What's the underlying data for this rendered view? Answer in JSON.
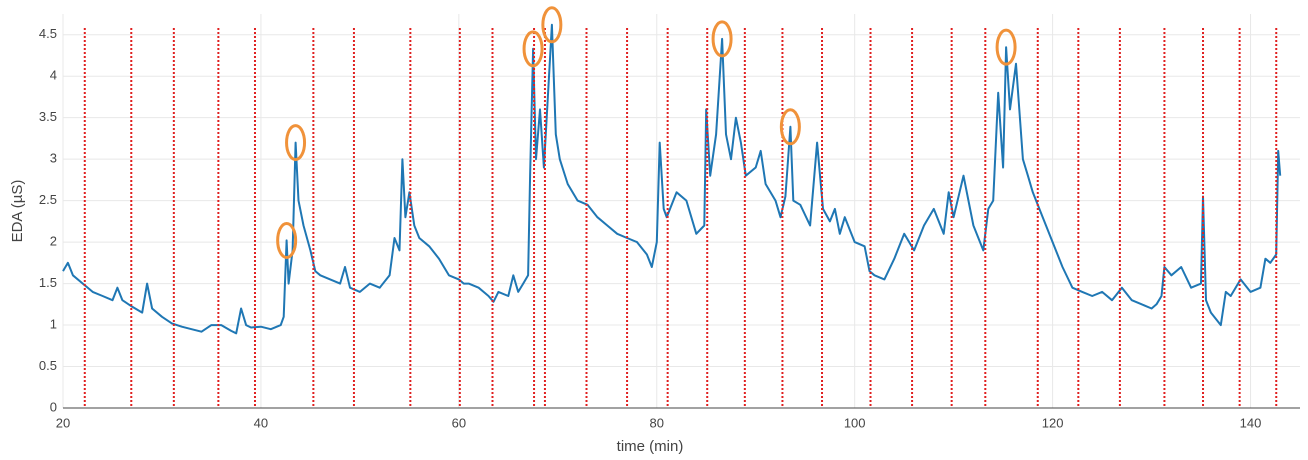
{
  "chart_data": {
    "type": "line",
    "xlabel": "time (min)",
    "ylabel": "EDA (µS)",
    "xlim": [
      20,
      145
    ],
    "ylim": [
      0,
      4.75
    ],
    "xticks": [
      20,
      40,
      60,
      80,
      100,
      120,
      140
    ],
    "yticks": [
      0,
      0.5,
      1,
      1.5,
      2,
      2.5,
      3,
      3.5,
      4,
      4.5
    ],
    "grid": true,
    "color": "#1f77b4",
    "x": [
      20,
      20.5,
      21,
      22,
      23,
      24,
      25,
      25.5,
      26,
      27,
      28,
      28.5,
      29,
      30,
      31,
      32,
      33,
      34,
      35,
      36,
      37,
      37.5,
      38,
      38.5,
      39,
      40,
      41,
      42,
      42.3,
      42.6,
      42.8,
      43.2,
      43.5,
      43.8,
      44.3,
      45,
      45.5,
      46,
      47,
      48,
      48.5,
      49,
      50,
      51,
      52,
      53,
      53.5,
      54,
      54.3,
      54.6,
      55,
      55.5,
      56,
      57,
      58,
      59,
      60,
      60.5,
      61,
      62,
      62.5,
      63,
      63.5,
      64,
      65,
      65.5,
      66,
      66.5,
      67,
      67.2,
      67.5,
      67.8,
      68.2,
      68.6,
      69.4,
      69.8,
      70.2,
      71,
      72,
      73,
      74,
      75,
      76,
      77,
      78,
      79,
      79.5,
      80,
      80.3,
      80.7,
      81,
      82,
      83,
      84,
      84.8,
      85,
      85.4,
      86,
      86.6,
      87,
      87.5,
      88,
      88.5,
      89,
      90,
      90.5,
      91,
      92,
      92.5,
      93,
      93.5,
      93.8,
      94.5,
      95.5,
      96.2,
      96.8,
      97.5,
      98,
      98.5,
      99,
      100,
      101,
      101.5,
      102,
      103,
      104,
      105,
      106,
      107,
      108,
      109,
      109.5,
      110,
      111,
      112,
      113,
      113.5,
      114,
      114.5,
      115,
      115.3,
      115.7,
      116.3,
      117,
      117.5,
      118,
      119,
      120,
      121,
      122,
      123,
      124,
      125,
      126,
      127,
      128,
      129,
      130,
      130.5,
      131,
      131.3,
      132,
      133,
      134,
      135,
      135.2,
      135.5,
      136,
      137,
      137.5,
      138,
      139,
      140,
      141,
      141.5,
      142,
      142.6,
      142.8,
      143
    ],
    "values": [
      1.65,
      1.75,
      1.6,
      1.5,
      1.4,
      1.35,
      1.3,
      1.45,
      1.3,
      1.22,
      1.15,
      1.5,
      1.2,
      1.1,
      1.02,
      0.98,
      0.95,
      0.92,
      1.0,
      1.0,
      0.93,
      0.9,
      1.2,
      1.0,
      0.97,
      0.98,
      0.95,
      1.0,
      1.1,
      2.02,
      1.5,
      1.9,
      3.2,
      2.5,
      2.2,
      1.9,
      1.65,
      1.6,
      1.55,
      1.5,
      1.7,
      1.45,
      1.4,
      1.5,
      1.45,
      1.6,
      2.05,
      1.9,
      3.0,
      2.3,
      2.6,
      2.2,
      2.05,
      1.95,
      1.8,
      1.6,
      1.55,
      1.5,
      1.5,
      1.45,
      1.4,
      1.35,
      1.28,
      1.4,
      1.35,
      1.6,
      1.4,
      1.5,
      1.6,
      2.8,
      4.33,
      3.0,
      3.6,
      2.9,
      4.62,
      3.3,
      3.0,
      2.7,
      2.5,
      2.45,
      2.3,
      2.2,
      2.1,
      2.05,
      2.0,
      1.85,
      1.7,
      2.0,
      3.2,
      2.4,
      2.3,
      2.6,
      2.5,
      2.1,
      2.2,
      3.6,
      2.8,
      3.3,
      4.45,
      3.3,
      3.0,
      3.5,
      3.2,
      2.8,
      2.9,
      3.1,
      2.7,
      2.5,
      2.3,
      2.55,
      3.39,
      2.5,
      2.45,
      2.2,
      3.2,
      2.4,
      2.25,
      2.4,
      2.1,
      2.3,
      2.0,
      1.95,
      1.65,
      1.6,
      1.55,
      1.8,
      2.1,
      1.9,
      2.2,
      2.4,
      2.1,
      2.6,
      2.3,
      2.8,
      2.2,
      1.9,
      2.4,
      2.5,
      3.8,
      2.9,
      4.35,
      3.6,
      4.15,
      3.0,
      2.8,
      2.6,
      2.3,
      2.0,
      1.7,
      1.45,
      1.4,
      1.35,
      1.4,
      1.3,
      1.45,
      1.3,
      1.25,
      1.2,
      1.25,
      1.35,
      1.7,
      1.6,
      1.7,
      1.45,
      1.5,
      2.55,
      1.3,
      1.15,
      1.0,
      1.4,
      1.35,
      1.55,
      1.4,
      1.45,
      1.8,
      1.75,
      1.85,
      3.1,
      2.8
    ],
    "event_lines": {
      "color": "#e02020",
      "x": [
        22.2,
        26.9,
        31.2,
        35.7,
        39.4,
        45.3,
        49.4,
        55.1,
        60.1,
        63.4,
        67.6,
        68.7,
        72.9,
        77.0,
        81.1,
        85.1,
        88.9,
        92.7,
        96.7,
        101.6,
        105.8,
        109.8,
        113.2,
        118.5,
        122.6,
        126.8,
        131.3,
        135.2,
        138.9,
        142.6
      ]
    },
    "highlights": {
      "color": "#f0923a",
      "x": [
        42.6,
        43.5,
        67.5,
        69.4,
        86.6,
        93.5,
        115.3
      ],
      "values": [
        2.02,
        3.2,
        4.33,
        4.62,
        4.45,
        3.39,
        4.35
      ]
    }
  }
}
